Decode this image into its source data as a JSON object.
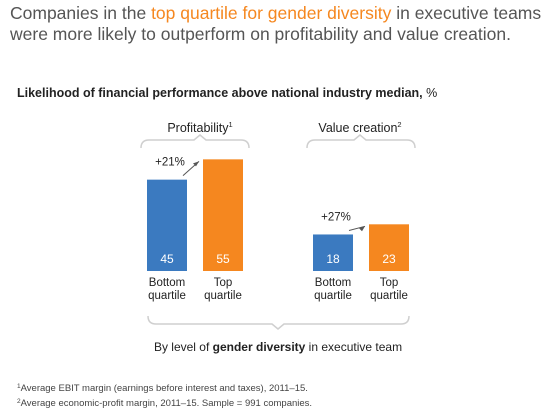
{
  "headline": {
    "pre": "Companies in the ",
    "highlight": "top quartile for gender diversity",
    "post": " in executive teams were more likely to outperform on profitability and value creation."
  },
  "subtitle": {
    "text": "Likelihood of financial performance above national industry median,",
    "unit": "%"
  },
  "colors": {
    "bottom": "#3b7ac0",
    "top": "#f5871f",
    "bracket": "#cfcfcf",
    "text": "#222222"
  },
  "chart_data": {
    "type": "bar",
    "xlabel": "By level of gender diversity in executive team",
    "xlabel_parts": {
      "pre": "By level of ",
      "bold": "gender diversity",
      "post": " in executive team"
    },
    "series": [
      {
        "values": [
          45,
          18
        ],
        "categories_label": "Bottom quartile"
      },
      {
        "values": [
          55,
          23
        ],
        "categories_label": "Top quartile"
      }
    ],
    "groups": [
      {
        "title": "Profitability",
        "sup": "1",
        "change": "+21%",
        "bars": [
          {
            "label": "Bottom\nquartile",
            "value": 45,
            "color": "#3b7ac0"
          },
          {
            "label": "Top\nquartile",
            "value": 55,
            "color": "#f5871f"
          }
        ]
      },
      {
        "title": "Value creation",
        "sup": "2",
        "change": "+27%",
        "bars": [
          {
            "label": "Bottom\nquartile",
            "value": 18,
            "color": "#3b7ac0"
          },
          {
            "label": "Top\nquartile",
            "value": 23,
            "color": "#f5871f"
          }
        ]
      }
    ],
    "grid": false,
    "legend": "none"
  },
  "footnotes": [
    {
      "sup": "1",
      "text": "Average EBIT margin (earnings before interest and taxes), 2011–15."
    },
    {
      "sup": "2",
      "text": "Average economic-profit margin, 2011–15. Sample = 991 companies."
    }
  ]
}
